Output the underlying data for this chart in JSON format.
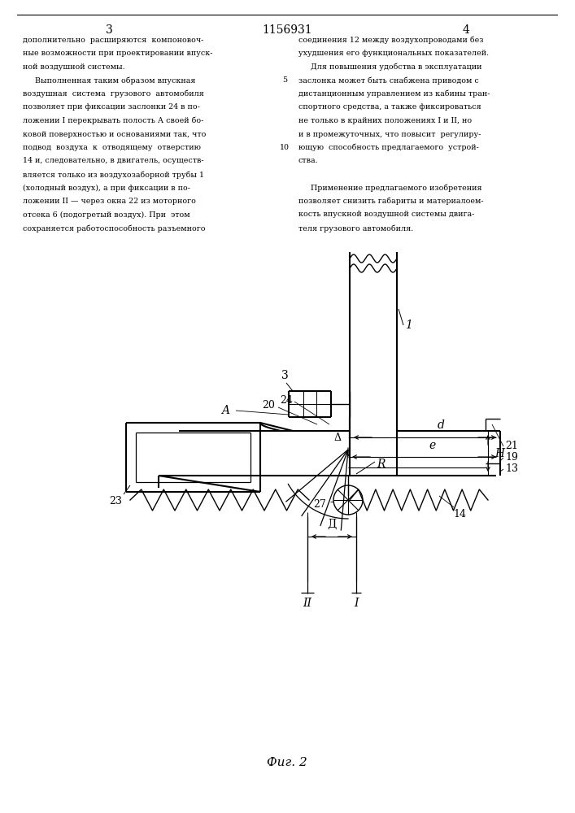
{
  "page_number_left": "3",
  "page_number_center": "1156931",
  "page_number_right": "4",
  "text_left": [
    "дополнительно  расширяются  компоновоч-",
    "ные возможности при проектировании впуск-",
    "ной воздушной системы.",
    "     Выполненная таким образом впускная",
    "воздушная  система  грузового  автомобиля",
    "позволяет при фиксации заслонки 24 в по-",
    "ложении I перекрывать полость А своей бо-",
    "ковой поверхностью и основаниями так, что",
    "подвод  воздуха  к  отводящему  отверстию",
    "14 и, следовательно, в двигатель, осуществ-",
    "вляется только из воздухозаборной трубы 1",
    "(холодный воздух), а при фиксации в по-",
    "ложении II — через окна 22 из моторного",
    "отсека 6 (подогретый воздух). При  этом",
    "сохраняется работоспособность разъемного"
  ],
  "text_right": [
    "соединения 12 между воздухопроводами без",
    "ухудшения его функциональных показателей.",
    "     Для повышения удобства в эксплуатации",
    "заслонка может быть снабжена приводом с",
    "дистанционным управлением из кабины тран-",
    "спортного средства, а также фиксироваться",
    "не только в крайних положениях I и II, но",
    "и в промежуточных, что повысит  регулиру-",
    "ющую  способность предлагаемого  устрой-",
    "ства.",
    "",
    "     Применение предлагаемого изобретения",
    "позволяет снизить габариты и материалоем-",
    "кость впускной воздушной системы двига-",
    "теля грузового автомобиля."
  ],
  "fig_label": "Фиг. 2",
  "background_color": "#ffffff",
  "line_color": "#000000",
  "text_color": "#000000"
}
